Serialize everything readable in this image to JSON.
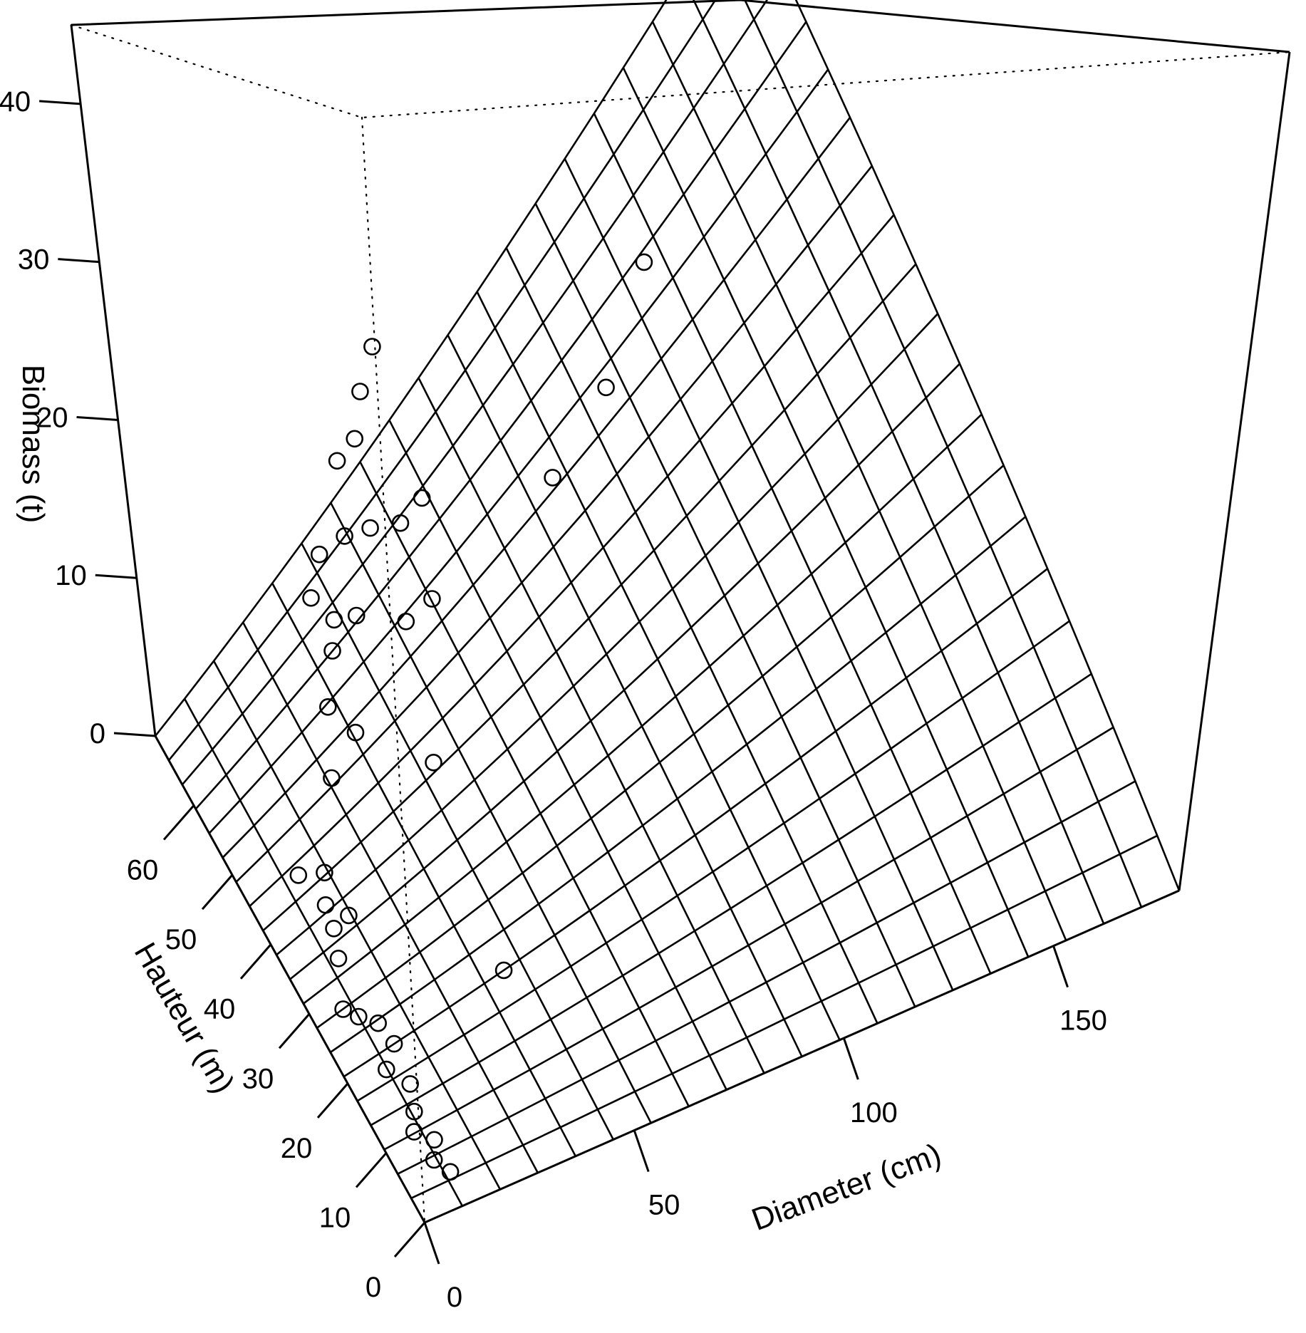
{
  "chart_data": {
    "type": "surface3d",
    "title": "",
    "xlabel": "Diameter (cm)",
    "ylabel": "Hauteur (m)",
    "zlabel": "Biomass (t)",
    "xlim": [
      0,
      180
    ],
    "ylim": [
      0,
      70
    ],
    "zlim": [
      0,
      45
    ],
    "x_ticks": [
      {
        "value": 0,
        "label": "0"
      },
      {
        "value": 50,
        "label": "50"
      },
      {
        "value": 100,
        "label": "100"
      },
      {
        "value": 150,
        "label": "150"
      }
    ],
    "y_ticks": [
      {
        "value": 0,
        "label": "0"
      },
      {
        "value": 10,
        "label": "10"
      },
      {
        "value": 20,
        "label": "20"
      },
      {
        "value": 30,
        "label": "30"
      },
      {
        "value": 40,
        "label": "40"
      },
      {
        "value": 50,
        "label": "50"
      },
      {
        "value": 60,
        "label": "60"
      }
    ],
    "z_ticks": [
      {
        "value": 0,
        "label": "0"
      },
      {
        "value": 10,
        "label": "10"
      },
      {
        "value": 20,
        "label": "20"
      },
      {
        "value": 30,
        "label": "30"
      },
      {
        "value": 40,
        "label": "40"
      }
    ],
    "surface": {
      "model": "biomass = 0.00035 * diameter * diameter * height / 100",
      "grid_x_divisions": 20,
      "grid_y_divisions": 20
    },
    "points": [
      {
        "diameter": 10,
        "height": 4,
        "biomass": 0.2
      },
      {
        "diameter": 8,
        "height": 6,
        "biomass": 0.3
      },
      {
        "diameter": 10,
        "height": 8,
        "biomass": 0.4
      },
      {
        "diameter": 7,
        "height": 10,
        "biomass": 0.4
      },
      {
        "diameter": 9,
        "height": 12,
        "biomass": 0.5
      },
      {
        "diameter": 11,
        "height": 15,
        "biomass": 0.6
      },
      {
        "diameter": 8,
        "height": 18,
        "biomass": 0.6
      },
      {
        "diameter": 12,
        "height": 20,
        "biomass": 0.7
      },
      {
        "diameter": 11,
        "height": 23,
        "biomass": 0.8
      },
      {
        "diameter": 8,
        "height": 25,
        "biomass": 0.8
      },
      {
        "diameter": 6,
        "height": 27,
        "biomass": 0.7
      },
      {
        "diameter": 40,
        "height": 20,
        "biomass": 1.0
      },
      {
        "diameter": 10,
        "height": 32,
        "biomass": 1.0
      },
      {
        "diameter": 12,
        "height": 35,
        "biomass": 1.2
      },
      {
        "diameter": 16,
        "height": 35,
        "biomass": 1.3
      },
      {
        "diameter": 13,
        "height": 38,
        "biomass": 1.1
      },
      {
        "diameter": 16,
        "height": 41,
        "biomass": 1.2
      },
      {
        "diameter": 11,
        "height": 43,
        "biomass": 1.1
      },
      {
        "diameter": 25,
        "height": 47,
        "biomass": 3.0
      },
      {
        "diameter": 33,
        "height": 48,
        "biomass": 4.0
      },
      {
        "diameter": 45,
        "height": 40,
        "biomass": 3.5
      },
      {
        "diameter": 30,
        "height": 52,
        "biomass": 4.5
      },
      {
        "diameter": 35,
        "height": 55,
        "biomass": 6.0
      },
      {
        "diameter": 42,
        "height": 55,
        "biomass": 7.0
      },
      {
        "diameter": 38,
        "height": 57,
        "biomass": 6.5
      },
      {
        "diameter": 50,
        "height": 50,
        "biomass": 7.5
      },
      {
        "diameter": 35,
        "height": 60,
        "biomass": 7.5
      },
      {
        "diameter": 55,
        "height": 48,
        "biomass": 9.5
      },
      {
        "diameter": 40,
        "height": 62,
        "biomass": 8.5
      },
      {
        "diameter": 45,
        "height": 60,
        "biomass": 10.0
      },
      {
        "diameter": 50,
        "height": 58,
        "biomass": 10.5
      },
      {
        "diameter": 55,
        "height": 55,
        "biomass": 11.5
      },
      {
        "diameter": 60,
        "height": 54,
        "biomass": 13.0
      },
      {
        "diameter": 48,
        "height": 64,
        "biomass": 13.5
      },
      {
        "diameter": 52,
        "height": 63,
        "biomass": 15.0
      },
      {
        "diameter": 55,
        "height": 64,
        "biomass": 18.0
      },
      {
        "diameter": 60,
        "height": 65,
        "biomass": 20.0
      },
      {
        "diameter": 85,
        "height": 45,
        "biomass": 14.0
      },
      {
        "diameter": 100,
        "height": 45,
        "biomass": 18.0
      },
      {
        "diameter": 115,
        "height": 48,
        "biomass": 23.0
      }
    ]
  }
}
